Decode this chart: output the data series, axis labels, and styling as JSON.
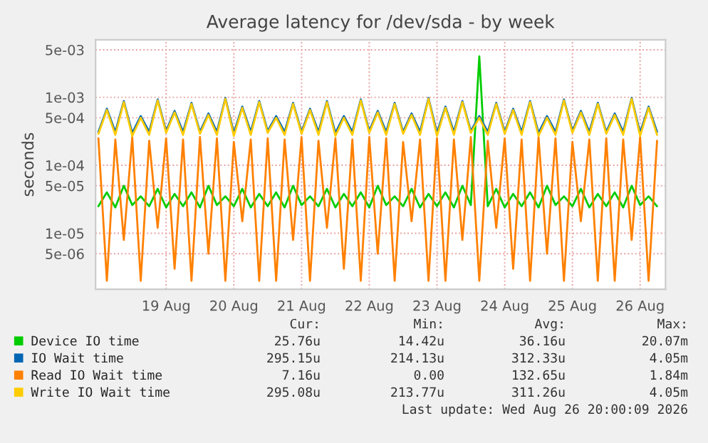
{
  "chart_data": {
    "type": "line",
    "title": "Average latency for /dev/sda - by week",
    "ylabel": "seconds",
    "x": [
      "2026-08-18T12:00",
      "2026-08-18T15:00",
      "2026-08-18T18:00",
      "2026-08-18T21:00",
      "2026-08-19T00:00",
      "2026-08-19T03:00",
      "2026-08-19T06:00",
      "2026-08-19T09:00",
      "2026-08-19T12:00",
      "2026-08-19T15:00",
      "2026-08-19T18:00",
      "2026-08-19T21:00",
      "2026-08-20T00:00",
      "2026-08-20T03:00",
      "2026-08-20T06:00",
      "2026-08-20T09:00",
      "2026-08-20T12:00",
      "2026-08-20T15:00",
      "2026-08-20T18:00",
      "2026-08-20T21:00",
      "2026-08-21T00:00",
      "2026-08-21T03:00",
      "2026-08-21T06:00",
      "2026-08-21T09:00",
      "2026-08-21T12:00",
      "2026-08-21T15:00",
      "2026-08-21T18:00",
      "2026-08-21T21:00",
      "2026-08-22T00:00",
      "2026-08-22T03:00",
      "2026-08-22T06:00",
      "2026-08-22T09:00",
      "2026-08-22T12:00",
      "2026-08-22T15:00",
      "2026-08-22T18:00",
      "2026-08-22T21:00",
      "2026-08-23T00:00",
      "2026-08-23T03:00",
      "2026-08-23T06:00",
      "2026-08-23T09:00",
      "2026-08-23T12:00",
      "2026-08-23T15:00",
      "2026-08-23T18:00",
      "2026-08-23T21:00",
      "2026-08-24T00:00",
      "2026-08-24T03:00",
      "2026-08-24T06:00",
      "2026-08-24T09:00",
      "2026-08-24T12:00",
      "2026-08-24T15:00",
      "2026-08-24T18:00",
      "2026-08-24T21:00",
      "2026-08-25T00:00",
      "2026-08-25T03:00",
      "2026-08-25T06:00",
      "2026-08-25T09:00",
      "2026-08-25T12:00",
      "2026-08-25T15:00",
      "2026-08-25T18:00",
      "2026-08-25T21:00",
      "2026-08-26T00:00",
      "2026-08-26T03:00",
      "2026-08-26T06:00",
      "2026-08-26T09:00",
      "2026-08-26T12:00",
      "2026-08-26T15:00",
      "2026-08-26T18:00"
    ],
    "series": [
      {
        "name": "Device IO time",
        "color": "#00cc00",
        "values": [
          2.5e-05,
          4e-05,
          2.4e-05,
          5e-05,
          2.6e-05,
          3.5e-05,
          2.5e-05,
          4.5e-05,
          2.4e-05,
          3.8e-05,
          2.5e-05,
          4e-05,
          2.4e-05,
          5e-05,
          2.6e-05,
          3.5e-05,
          2.5e-05,
          4.5e-05,
          2.4e-05,
          3.8e-05,
          2.5e-05,
          4e-05,
          2.4e-05,
          5e-05,
          2.6e-05,
          3.5e-05,
          2.5e-05,
          4.5e-05,
          2.4e-05,
          3.8e-05,
          2.5e-05,
          4e-05,
          2.4e-05,
          5e-05,
          2.6e-05,
          3.5e-05,
          2.5e-05,
          4.5e-05,
          2.4e-05,
          3.8e-05,
          2.5e-05,
          4e-05,
          2.4e-05,
          5e-05,
          2.6e-05,
          0.004,
          2.5e-05,
          4.5e-05,
          2.4e-05,
          3.8e-05,
          2.5e-05,
          4e-05,
          2.4e-05,
          5e-05,
          2.6e-05,
          3.5e-05,
          2.5e-05,
          4.5e-05,
          2.4e-05,
          3.8e-05,
          2.5e-05,
          4e-05,
          2.4e-05,
          5e-05,
          2.6e-05,
          3.5e-05,
          2.5e-05
        ]
      },
      {
        "name": "IO Wait time",
        "color": "#0066b3",
        "values": [
          0.00031,
          0.00068,
          0.00031,
          0.00088,
          0.0003,
          0.00053,
          0.00031,
          0.00093,
          0.00032,
          0.00063,
          0.00031,
          0.00083,
          0.00031,
          0.00058,
          0.00031,
          0.00098,
          0.0003,
          0.00073,
          0.00031,
          0.00088,
          0.00032,
          0.00053,
          0.00031,
          0.00083,
          0.00031,
          0.00068,
          0.00031,
          0.00088,
          0.0003,
          0.00053,
          0.00031,
          0.00093,
          0.00032,
          0.00063,
          0.00031,
          0.00083,
          0.00031,
          0.00058,
          0.00031,
          0.00098,
          0.0003,
          0.00073,
          0.00031,
          0.00088,
          0.00032,
          0.00053,
          0.00031,
          0.00083,
          0.00031,
          0.00068,
          0.00031,
          0.00088,
          0.0003,
          0.00053,
          0.00031,
          0.00093,
          0.00032,
          0.00063,
          0.00031,
          0.00083,
          0.00031,
          0.00058,
          0.00031,
          0.00098,
          0.0003,
          0.00073,
          0.00031
        ]
      },
      {
        "name": "Read IO Wait time",
        "color": "#ff8000",
        "values": [
          0.00025,
          2e-06,
          0.00024,
          8e-06,
          0.00026,
          2e-06,
          0.00023,
          1.2e-05,
          0.00025,
          3e-06,
          0.00024,
          2e-06,
          0.00026,
          5e-06,
          0.00025,
          2e-06,
          0.00022,
          1.5e-05,
          0.00024,
          2e-06,
          0.00025,
          2e-06,
          0.00024,
          8e-06,
          0.00026,
          2e-06,
          0.00023,
          1.2e-05,
          0.00025,
          3e-06,
          0.00024,
          2e-06,
          0.00026,
          5e-06,
          0.00025,
          2e-06,
          0.00022,
          1.5e-05,
          0.00024,
          2e-06,
          0.00025,
          2e-06,
          0.00024,
          8e-06,
          0.00026,
          2e-06,
          0.00023,
          1.2e-05,
          0.00025,
          3e-06,
          0.00024,
          2e-06,
          0.00026,
          5e-06,
          0.00025,
          2e-06,
          0.00022,
          1.5e-05,
          0.00024,
          2e-06,
          0.00025,
          2e-06,
          0.00024,
          8e-06,
          0.00026,
          2e-06,
          0.00023
        ]
      },
      {
        "name": "Write IO Wait time",
        "color": "#ffcc00",
        "values": [
          0.00029,
          0.00065,
          0.00028,
          0.00085,
          0.00027,
          0.0005,
          0.00028,
          0.0009,
          0.0003,
          0.0006,
          0.00028,
          0.0008,
          0.00029,
          0.00055,
          0.00028,
          0.00095,
          0.00027,
          0.0007,
          0.00028,
          0.00085,
          0.0003,
          0.0005,
          0.00028,
          0.0008,
          0.00029,
          0.00065,
          0.00028,
          0.00085,
          0.00027,
          0.0005,
          0.00028,
          0.0009,
          0.0003,
          0.0006,
          0.00028,
          0.0008,
          0.00029,
          0.00055,
          0.00028,
          0.00095,
          0.00027,
          0.0007,
          0.00028,
          0.00085,
          0.0003,
          0.0005,
          0.00028,
          0.0008,
          0.00029,
          0.00065,
          0.00028,
          0.00085,
          0.00027,
          0.0005,
          0.00028,
          0.0009,
          0.0003,
          0.0006,
          0.00028,
          0.0008,
          0.00029,
          0.00055,
          0.00028,
          0.00095,
          0.00027,
          0.0007,
          0.00028
        ]
      }
    ],
    "log": "y",
    "ylim": [
      1.5e-06,
      0.007
    ],
    "yticks": [
      {
        "value": 5e-06,
        "label": "5e-06"
      },
      {
        "value": 1e-05,
        "label": "1e-05"
      },
      {
        "value": 5e-05,
        "label": "5e-05"
      },
      {
        "value": 0.0001,
        "label": "1e-04"
      },
      {
        "value": 0.0005,
        "label": "5e-04"
      },
      {
        "value": 0.001,
        "label": "1e-03"
      },
      {
        "value": 0.005,
        "label": "5e-03"
      }
    ],
    "xlim": [
      "2026-08-18T11:00",
      "2026-08-26T21:00"
    ],
    "xticks": [
      {
        "value": "2026-08-19T12:00",
        "label": "19 Aug"
      },
      {
        "value": "2026-08-20T12:00",
        "label": "20 Aug"
      },
      {
        "value": "2026-08-21T12:00",
        "label": "21 Aug"
      },
      {
        "value": "2026-08-22T12:00",
        "label": "22 Aug"
      },
      {
        "value": "2026-08-23T12:00",
        "label": "23 Aug"
      },
      {
        "value": "2026-08-24T12:00",
        "label": "24 Aug"
      },
      {
        "value": "2026-08-25T12:00",
        "label": "25 Aug"
      },
      {
        "value": "2026-08-26T12:00",
        "label": "26 Aug"
      }
    ],
    "grid": true,
    "legend": "bottom left",
    "marker": "none",
    "line_style": "solid",
    "annotations": [
      "Cur:",
      "Min:",
      "Avg:",
      "Max:",
      "25.76u",
      "14.42u",
      "36.16u",
      "20.07m",
      "295.15u",
      "214.13u",
      "312.33u",
      "4.05m",
      "7.16u",
      "0.00",
      "132.65u",
      "1.84m",
      "295.08u",
      "213.77u",
      "311.26u",
      "4.05m",
      "Last update: Wed Aug 26 20:00:09 2026"
    ]
  }
}
